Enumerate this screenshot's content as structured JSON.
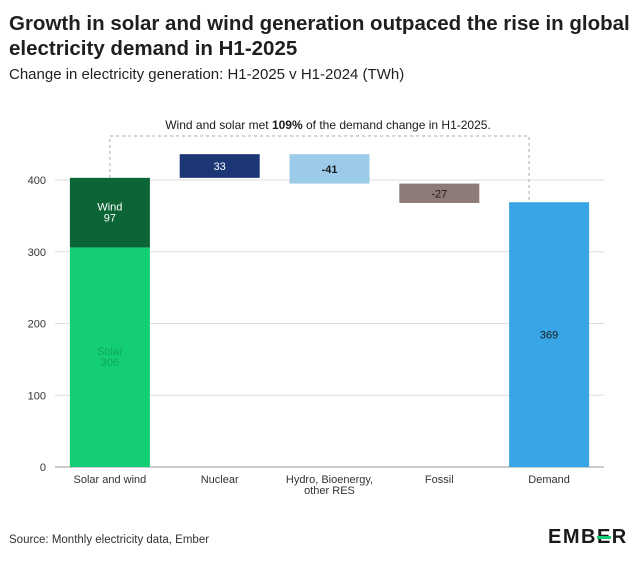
{
  "title": "Growth in solar and wind generation outpaced the rise in global electricity demand in H1-2025",
  "subtitle": "Change in electricity generation: H1-2025 v H1-2024 (TWh)",
  "annotation": {
    "prefix": "Wind and solar met ",
    "highlight": "109%",
    "suffix": " of the demand change in H1-2025."
  },
  "source": "Source: Monthly electricity data, Ember",
  "logo": "EMBER",
  "chart_data": {
    "type": "bar",
    "subtype": "waterfall",
    "categories": [
      "Solar and wind",
      "Nuclear",
      "Hydro, Bioenergy, other RES",
      "Fossil",
      "Demand"
    ],
    "category_label_lines": [
      [
        "Solar and wind"
      ],
      [
        "Nuclear"
      ],
      [
        "Hydro, Bioenergy,",
        "other RES"
      ],
      [
        "Fossil"
      ],
      [
        "Demand"
      ]
    ],
    "ylim": [
      0,
      420
    ],
    "yticks": [
      0,
      100,
      200,
      300,
      400
    ],
    "grid": true,
    "bars": [
      {
        "category": "Solar and wind",
        "segments": [
          {
            "name": "Solar",
            "value": 306,
            "label": "Solar\n306",
            "color": "#13ce74",
            "label_color": "#0fa85c"
          },
          {
            "name": "Wind",
            "value": 97,
            "label": "Wind\n97",
            "color": "#0b6534",
            "label_color": "#ffffff"
          }
        ]
      },
      {
        "category": "Nuclear",
        "start": 403,
        "value": 33,
        "label": "33",
        "color": "#1c3676",
        "label_color": "#ffffff"
      },
      {
        "category": "Hydro, Bioenergy, other RES",
        "start": 436,
        "value": -41,
        "label": "-41",
        "color": "#9ccbea",
        "label_color": "#1a1a1a"
      },
      {
        "category": "Fossil",
        "start": 395,
        "value": -27,
        "label": "-27",
        "color": "#8c7b77",
        "label_color": "#1a1a1a"
      },
      {
        "category": "Demand",
        "start": 0,
        "value": 369,
        "label": "369",
        "color": "#38a6e6",
        "label_color": "#1a1a1a"
      }
    ]
  }
}
